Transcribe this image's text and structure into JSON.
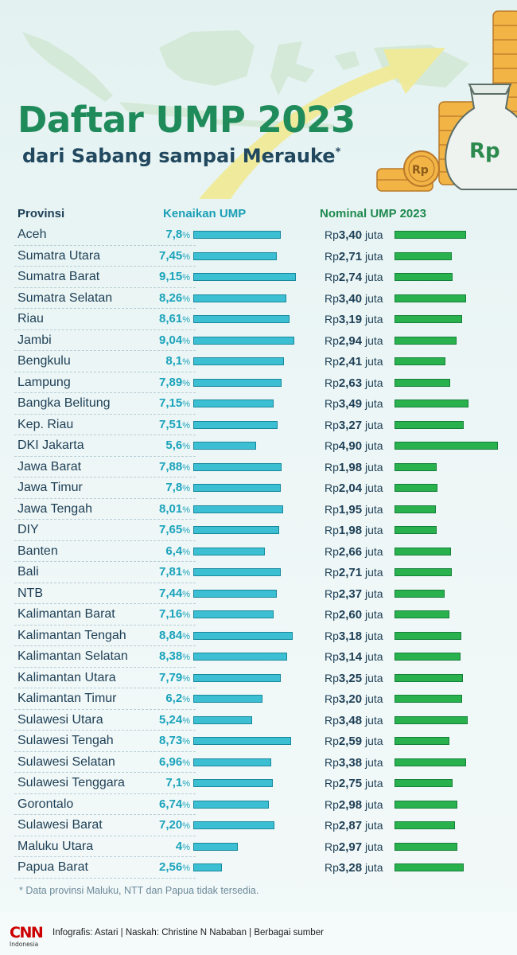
{
  "header": {
    "title": "Daftar UMP 2023",
    "subtitle": "dari Sabang sampai Merauke",
    "subtitle_mark": "*",
    "badge_coin": "Rp",
    "badge_bag": "Rp"
  },
  "columns": {
    "province": "Provinsi",
    "increase": "Kenaikan UMP",
    "nominal": "Nominal UMP 2023"
  },
  "rows": [
    {
      "province": "Aceh",
      "pct": "7,8",
      "rp": "3,40"
    },
    {
      "province": "Sumatra Utara",
      "pct": "7,45",
      "rp": "2,71"
    },
    {
      "province": "Sumatra Barat",
      "pct": "9,15",
      "rp": "2,74"
    },
    {
      "province": "Sumatra Selatan",
      "pct": "8,26",
      "rp": "3,40"
    },
    {
      "province": "Riau",
      "pct": "8,61",
      "rp": "3,19"
    },
    {
      "province": "Jambi",
      "pct": "9,04",
      "rp": "2,94"
    },
    {
      "province": "Bengkulu",
      "pct": "8,1",
      "rp": "2,41"
    },
    {
      "province": "Lampung",
      "pct": "7,89",
      "rp": "2,63"
    },
    {
      "province": "Bangka Belitung",
      "pct": "7,15",
      "rp": "3,49"
    },
    {
      "province": "Kep. Riau",
      "pct": "7,51",
      "rp": "3,27"
    },
    {
      "province": "DKI Jakarta",
      "pct": "5,6",
      "rp": "4,90"
    },
    {
      "province": "Jawa Barat",
      "pct": "7,88",
      "rp": "1,98"
    },
    {
      "province": "Jawa Timur",
      "pct": "7,8",
      "rp": "2,04"
    },
    {
      "province": "Jawa Tengah",
      "pct": "8,01",
      "rp": "1,95"
    },
    {
      "province": "DIY",
      "pct": "7,65",
      "rp": "1,98"
    },
    {
      "province": "Banten",
      "pct": "6,4",
      "rp": "2,66"
    },
    {
      "province": "Bali",
      "pct": "7,81",
      "rp": "2,71"
    },
    {
      "province": "NTB",
      "pct": "7,44",
      "rp": "2,37"
    },
    {
      "province": "Kalimantan Barat",
      "pct": "7,16",
      "rp": "2,60"
    },
    {
      "province": "Kalimantan Tengah",
      "pct": "8,84",
      "rp": "3,18"
    },
    {
      "province": "Kalimantan Selatan",
      "pct": "8,38",
      "rp": "3,14"
    },
    {
      "province": "Kalimantan Utara",
      "pct": "7,79",
      "rp": "3,25"
    },
    {
      "province": "Kalimantan Timur",
      "pct": "6,2",
      "rp": "3,20"
    },
    {
      "province": "Sulawesi Utara",
      "pct": "5,24",
      "rp": "3,48"
    },
    {
      "province": "Sulawesi Tengah",
      "pct": "8,73",
      "rp": "2,59"
    },
    {
      "province": "Sulawesi Selatan",
      "pct": "6,96",
      "rp": "3,38"
    },
    {
      "province": "Sulawesi Tenggara",
      "pct": "7,1",
      "rp": "2,75"
    },
    {
      "province": "Gorontalo",
      "pct": "6,74",
      "rp": "2,98"
    },
    {
      "province": "Sulawesi Barat",
      "pct": "7,20",
      "rp": "2,87"
    },
    {
      "province": "Maluku Utara",
      "pct": "4",
      "rp": "2,97"
    },
    {
      "province": "Papua Barat",
      "pct": "2,56",
      "rp": "3,28"
    }
  ],
  "units": {
    "percent_symbol": "%",
    "currency_prefix": "Rp",
    "currency_suffix": "juta"
  },
  "footnote": "* Data provinsi Maluku, NTT dan Papua tidak tersedia.",
  "footer": {
    "logo_main": "CNN",
    "logo_sub": "Indonesia",
    "credits": "Infografis: Astari | Naskah: Christine N Nababan | Berbagai sumber"
  },
  "colors": {
    "title": "#1f8a5a",
    "increase_bar": "#3dbfd3",
    "nominal_bar": "#29b14d",
    "percent_text": "#1aa3bb",
    "logo_red": "#cc0000"
  },
  "chart_data": [
    {
      "type": "bar",
      "orientation": "horizontal",
      "ylabel": "Kenaikan UMP",
      "unit": "%",
      "categories": [
        "Aceh",
        "Sumatra Utara",
        "Sumatra Barat",
        "Sumatra Selatan",
        "Riau",
        "Jambi",
        "Bengkulu",
        "Lampung",
        "Bangka Belitung",
        "Kep. Riau",
        "DKI Jakarta",
        "Jawa Barat",
        "Jawa Timur",
        "Jawa Tengah",
        "DIY",
        "Banten",
        "Bali",
        "NTB",
        "Kalimantan Barat",
        "Kalimantan Tengah",
        "Kalimantan Selatan",
        "Kalimantan Utara",
        "Kalimantan Timur",
        "Sulawesi Utara",
        "Sulawesi Tengah",
        "Sulawesi Selatan",
        "Sulawesi Tenggara",
        "Gorontalo",
        "Sulawesi Barat",
        "Maluku Utara",
        "Papua Barat"
      ],
      "values": [
        7.8,
        7.45,
        9.15,
        8.26,
        8.61,
        9.04,
        8.1,
        7.89,
        7.15,
        7.51,
        5.6,
        7.88,
        7.8,
        8.01,
        7.65,
        6.4,
        7.81,
        7.44,
        7.16,
        8.84,
        8.38,
        7.79,
        6.2,
        5.24,
        8.73,
        6.96,
        7.1,
        6.74,
        7.2,
        4,
        2.56
      ],
      "xlim": [
        0,
        9.15
      ]
    },
    {
      "type": "bar",
      "orientation": "horizontal",
      "ylabel": "Nominal UMP 2023",
      "unit": "Rp juta",
      "categories": [
        "Aceh",
        "Sumatra Utara",
        "Sumatra Barat",
        "Sumatra Selatan",
        "Riau",
        "Jambi",
        "Bengkulu",
        "Lampung",
        "Bangka Belitung",
        "Kep. Riau",
        "DKI Jakarta",
        "Jawa Barat",
        "Jawa Timur",
        "Jawa Tengah",
        "DIY",
        "Banten",
        "Bali",
        "NTB",
        "Kalimantan Barat",
        "Kalimantan Tengah",
        "Kalimantan Selatan",
        "Kalimantan Utara",
        "Kalimantan Timur",
        "Sulawesi Utara",
        "Sulawesi Tengah",
        "Sulawesi Selatan",
        "Sulawesi Tenggara",
        "Gorontalo",
        "Sulawesi Barat",
        "Maluku Utara",
        "Papua Barat"
      ],
      "values": [
        3.4,
        2.71,
        2.74,
        3.4,
        3.19,
        2.94,
        2.41,
        2.63,
        3.49,
        3.27,
        4.9,
        1.98,
        2.04,
        1.95,
        1.98,
        2.66,
        2.71,
        2.37,
        2.6,
        3.18,
        3.14,
        3.25,
        3.2,
        3.48,
        2.59,
        3.38,
        2.75,
        2.98,
        2.87,
        2.97,
        3.28
      ],
      "xlim": [
        0,
        4.9
      ]
    }
  ]
}
